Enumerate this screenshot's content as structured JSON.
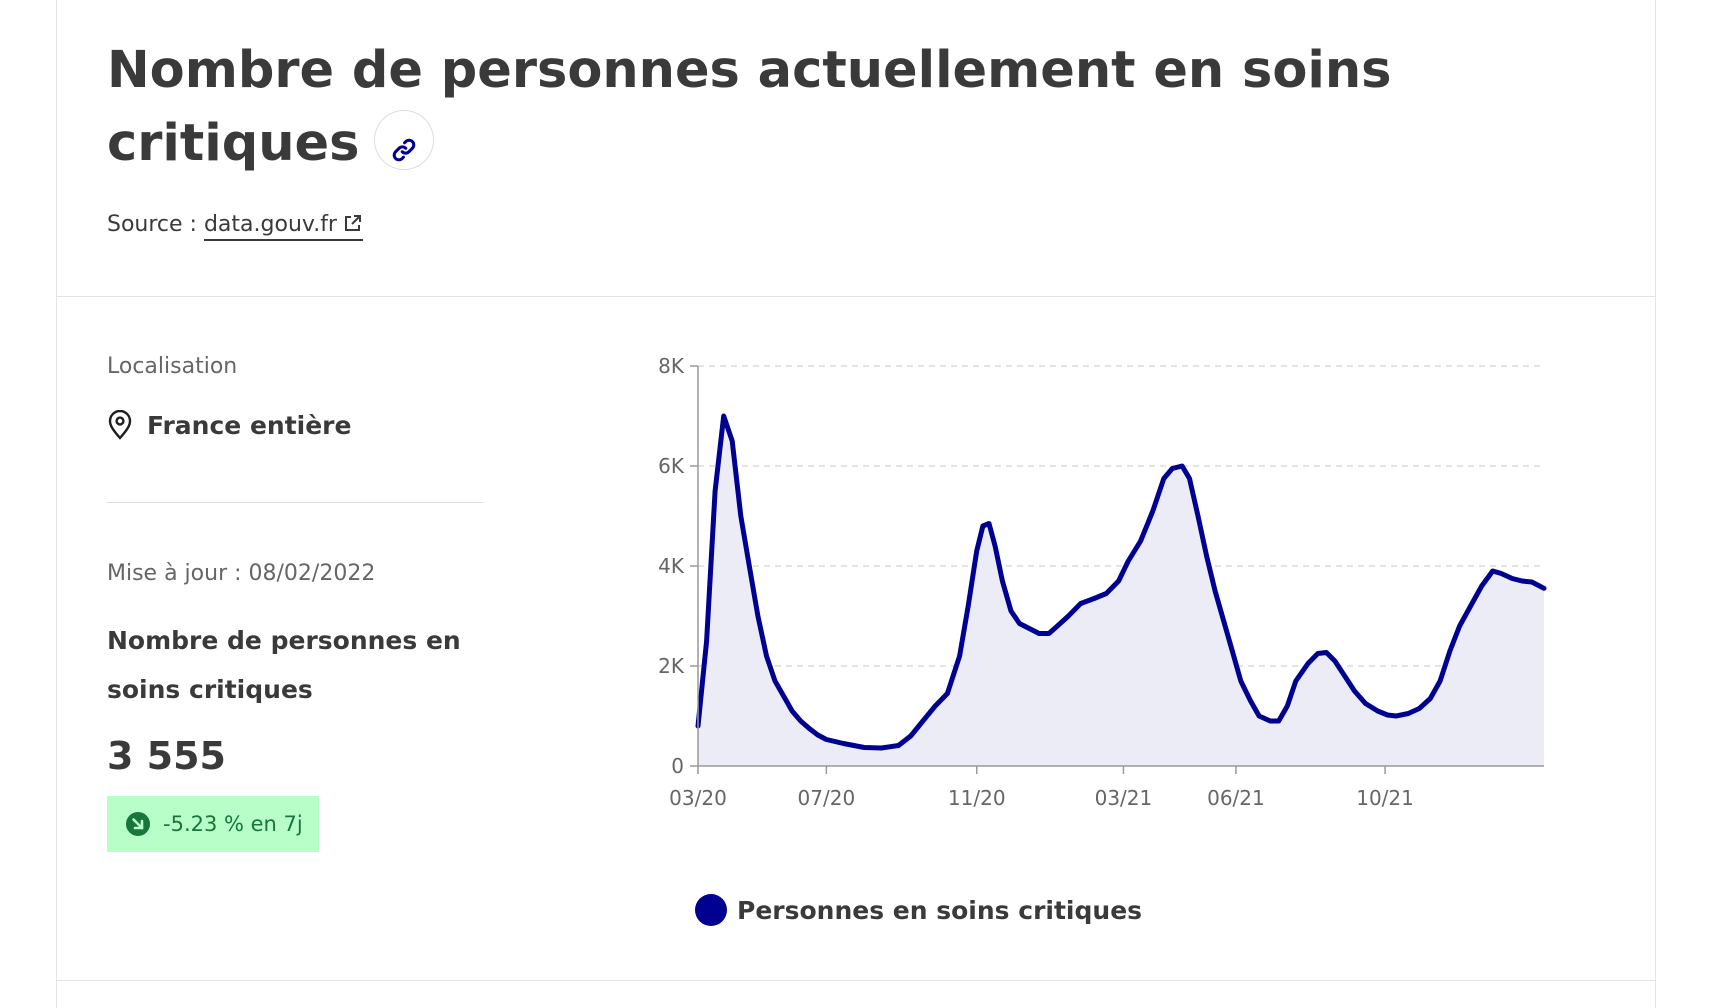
{
  "header": {
    "title": "Nombre de personnes actuellement en soins critiques",
    "source_label": "Source :",
    "source_link": "data.gouv.fr",
    "link_icon": "link-icon",
    "external_icon": "external-link-icon"
  },
  "sidebar": {
    "location_label": "Localisation",
    "location_value": "France entière",
    "location_icon": "map-pin-icon",
    "updated": "Mise à jour : 08/02/2022",
    "metric_label": "Nombre de personnes en soins critiques",
    "metric_value": "3 555",
    "trend": "-5.23 % en 7j",
    "trend_icon": "arrow-down-right-circle-icon"
  },
  "colors": {
    "line": "#000091",
    "area": "#ececf7",
    "trend_bg": "#b8fec9",
    "trend_text": "#18753c"
  },
  "chart_data": {
    "type": "area",
    "x_type": "date",
    "x_start": "2020-03-18",
    "x_end": "2022-02-08",
    "x_ticks": [
      {
        "date": "2020-03-18",
        "label": "03/20"
      },
      {
        "date": "2020-07-01",
        "label": "07/20"
      },
      {
        "date": "2020-11-01",
        "label": "11/20"
      },
      {
        "date": "2021-03-01",
        "label": "03/21"
      },
      {
        "date": "2021-06-01",
        "label": "06/21"
      },
      {
        "date": "2021-10-01",
        "label": "10/21"
      }
    ],
    "ylim": [
      0,
      8000
    ],
    "y_ticks": [
      0,
      2000,
      4000,
      6000,
      8000
    ],
    "y_tick_labels": [
      "0",
      "2K",
      "4K",
      "6K",
      "8K"
    ],
    "grid": true,
    "series": [
      {
        "name": "Personnes en soins critiques",
        "points": [
          [
            "2020-03-18",
            800
          ],
          [
            "2020-03-25",
            2500
          ],
          [
            "2020-04-01",
            5500
          ],
          [
            "2020-04-08",
            7000
          ],
          [
            "2020-04-15",
            6500
          ],
          [
            "2020-04-22",
            5000
          ],
          [
            "2020-04-29",
            4000
          ],
          [
            "2020-05-06",
            3000
          ],
          [
            "2020-05-13",
            2200
          ],
          [
            "2020-05-20",
            1700
          ],
          [
            "2020-05-27",
            1400
          ],
          [
            "2020-06-03",
            1100
          ],
          [
            "2020-06-10",
            900
          ],
          [
            "2020-06-17",
            750
          ],
          [
            "2020-06-24",
            620
          ],
          [
            "2020-07-01",
            530
          ],
          [
            "2020-07-15",
            450
          ],
          [
            "2020-08-01",
            370
          ],
          [
            "2020-08-15",
            360
          ],
          [
            "2020-08-29",
            410
          ],
          [
            "2020-09-08",
            600
          ],
          [
            "2020-09-18",
            900
          ],
          [
            "2020-09-28",
            1200
          ],
          [
            "2020-10-08",
            1450
          ],
          [
            "2020-10-18",
            2200
          ],
          [
            "2020-10-25",
            3200
          ],
          [
            "2020-11-01",
            4300
          ],
          [
            "2020-11-06",
            4800
          ],
          [
            "2020-11-11",
            4850
          ],
          [
            "2020-11-16",
            4400
          ],
          [
            "2020-11-22",
            3700
          ],
          [
            "2020-11-29",
            3100
          ],
          [
            "2020-12-06",
            2850
          ],
          [
            "2020-12-14",
            2750
          ],
          [
            "2020-12-22",
            2650
          ],
          [
            "2020-12-30",
            2650
          ],
          [
            "2021-01-06",
            2800
          ],
          [
            "2021-01-15",
            3000
          ],
          [
            "2021-01-25",
            3250
          ],
          [
            "2021-02-05",
            3350
          ],
          [
            "2021-02-15",
            3450
          ],
          [
            "2021-02-25",
            3700
          ],
          [
            "2021-03-05",
            4100
          ],
          [
            "2021-03-15",
            4500
          ],
          [
            "2021-03-25",
            5100
          ],
          [
            "2021-04-03",
            5750
          ],
          [
            "2021-04-10",
            5950
          ],
          [
            "2021-04-18",
            6000
          ],
          [
            "2021-04-24",
            5750
          ],
          [
            "2021-05-01",
            5000
          ],
          [
            "2021-05-08",
            4200
          ],
          [
            "2021-05-15",
            3500
          ],
          [
            "2021-05-22",
            2900
          ],
          [
            "2021-05-29",
            2300
          ],
          [
            "2021-06-05",
            1700
          ],
          [
            "2021-06-13",
            1300
          ],
          [
            "2021-06-20",
            1000
          ],
          [
            "2021-06-29",
            900
          ],
          [
            "2021-07-06",
            900
          ],
          [
            "2021-07-13",
            1200
          ],
          [
            "2021-07-20",
            1700
          ],
          [
            "2021-07-30",
            2050
          ],
          [
            "2021-08-07",
            2250
          ],
          [
            "2021-08-14",
            2270
          ],
          [
            "2021-08-21",
            2100
          ],
          [
            "2021-08-29",
            1800
          ],
          [
            "2021-09-06",
            1500
          ],
          [
            "2021-09-15",
            1250
          ],
          [
            "2021-09-25",
            1100
          ],
          [
            "2021-10-03",
            1020
          ],
          [
            "2021-10-10",
            1000
          ],
          [
            "2021-10-20",
            1050
          ],
          [
            "2021-10-29",
            1150
          ],
          [
            "2021-11-07",
            1350
          ],
          [
            "2021-11-15",
            1700
          ],
          [
            "2021-11-23",
            2300
          ],
          [
            "2021-12-01",
            2800
          ],
          [
            "2021-12-10",
            3200
          ],
          [
            "2021-12-19",
            3600
          ],
          [
            "2021-12-28",
            3900
          ],
          [
            "2022-01-04",
            3850
          ],
          [
            "2022-01-13",
            3750
          ],
          [
            "2022-01-21",
            3700
          ],
          [
            "2022-01-29",
            3680
          ],
          [
            "2022-02-08",
            3555
          ]
        ]
      }
    ],
    "legend_position": "bottom"
  }
}
